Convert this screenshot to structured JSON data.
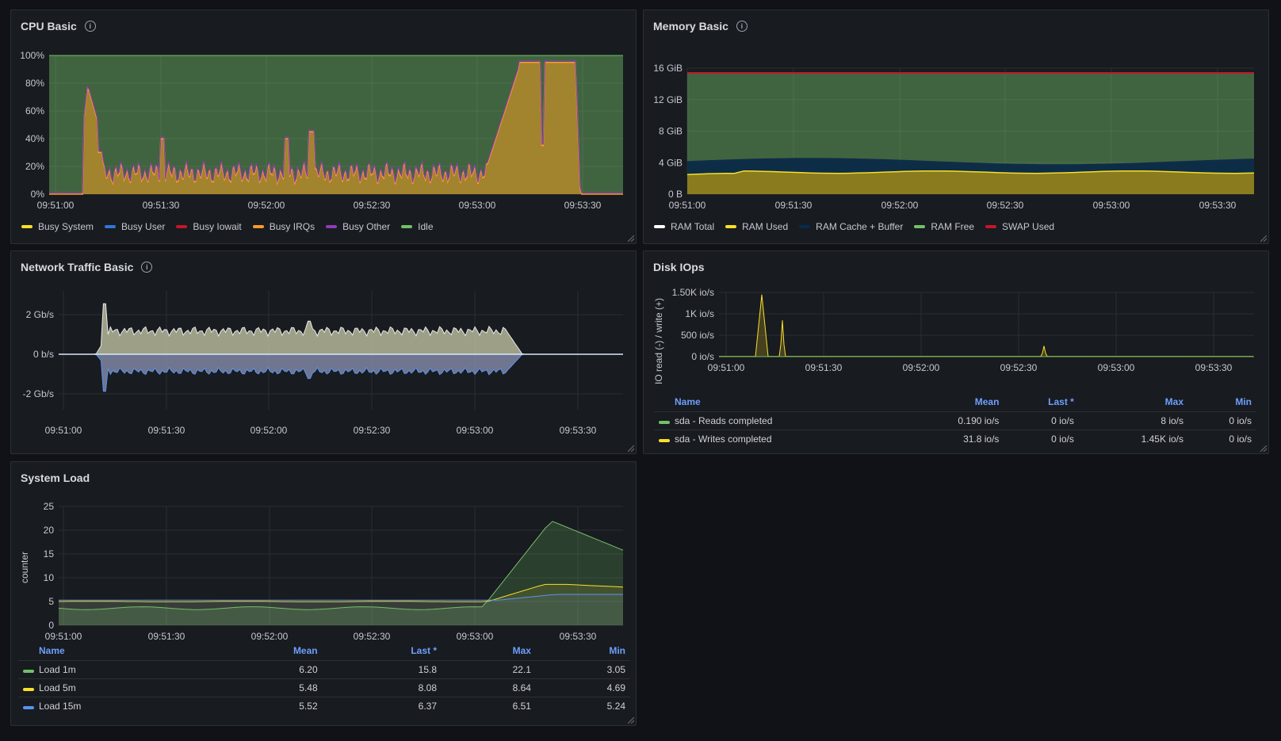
{
  "panels": {
    "cpu": {
      "title": "CPU Basic",
      "legend": [
        {
          "label": "Busy System",
          "color": "#fade2a"
        },
        {
          "label": "Busy User",
          "color": "#3274d9"
        },
        {
          "label": "Busy Iowait",
          "color": "#c4162a"
        },
        {
          "label": "Busy IRQs",
          "color": "#ff9830"
        },
        {
          "label": "Busy Other",
          "color": "#8f3bb8"
        },
        {
          "label": "Idle",
          "color": "#73bf69"
        }
      ],
      "y_ticks": [
        "100%",
        "80%",
        "60%",
        "40%",
        "20%",
        "0%"
      ],
      "x_ticks": [
        "09:51:00",
        "09:51:30",
        "09:52:00",
        "09:52:30",
        "09:53:00",
        "09:53:30"
      ]
    },
    "memory": {
      "title": "Memory Basic",
      "legend": [
        {
          "label": "RAM Total",
          "color": "#ffffff"
        },
        {
          "label": "RAM Used",
          "color": "#fade2a"
        },
        {
          "label": "RAM Cache + Buffer",
          "color": "#052b51"
        },
        {
          "label": "RAM Free",
          "color": "#73bf69"
        },
        {
          "label": "SWAP Used",
          "color": "#c4162a"
        }
      ],
      "y_ticks": [
        "16 GiB",
        "12 GiB",
        "8 GiB",
        "4 GiB",
        "0 B"
      ],
      "x_ticks": [
        "09:51:00",
        "09:51:30",
        "09:52:00",
        "09:52:30",
        "09:53:00",
        "09:53:30"
      ]
    },
    "network": {
      "title": "Network Traffic Basic",
      "y_ticks": [
        "2 Gb/s",
        "0 b/s",
        "-2 Gb/s"
      ],
      "x_ticks": [
        "09:51:00",
        "09:51:30",
        "09:52:00",
        "09:52:30",
        "09:53:00",
        "09:53:30"
      ]
    },
    "disk": {
      "title": "Disk IOps",
      "y_axis_label": "IO read (-) / write (+)",
      "y_ticks": [
        "1.50K io/s",
        "1K io/s",
        "500 io/s",
        "0 io/s"
      ],
      "x_ticks": [
        "09:51:00",
        "09:51:30",
        "09:52:00",
        "09:52:30",
        "09:53:00",
        "09:53:30"
      ],
      "table": {
        "headers": {
          "name": "Name",
          "mean": "Mean",
          "last": "Last *",
          "max": "Max",
          "min": "Min"
        },
        "rows": [
          {
            "name": "sda - Reads completed",
            "color": "#73bf69",
            "mean": "0.190 io/s",
            "last": "0 io/s",
            "max": "8 io/s",
            "min": "0 io/s"
          },
          {
            "name": "sda - Writes completed",
            "color": "#fade2a",
            "mean": "31.8 io/s",
            "last": "0 io/s",
            "max": "1.45K io/s",
            "min": "0 io/s"
          }
        ]
      }
    },
    "load": {
      "title": "System Load",
      "y_axis_label": "counter",
      "y_ticks": [
        "25",
        "20",
        "15",
        "10",
        "5",
        "0"
      ],
      "x_ticks": [
        "09:51:00",
        "09:51:30",
        "09:52:00",
        "09:52:30",
        "09:53:00",
        "09:53:30"
      ],
      "table": {
        "headers": {
          "name": "Name",
          "mean": "Mean",
          "last": "Last *",
          "max": "Max",
          "min": "Min"
        },
        "rows": [
          {
            "name": "Load 1m",
            "color": "#73bf69",
            "mean": "6.20",
            "last": "15.8",
            "max": "22.1",
            "min": "3.05"
          },
          {
            "name": "Load 5m",
            "color": "#fade2a",
            "mean": "5.48",
            "last": "8.08",
            "max": "8.64",
            "min": "4.69"
          },
          {
            "name": "Load 15m",
            "color": "#5794f2",
            "mean": "5.52",
            "last": "6.37",
            "max": "6.51",
            "min": "5.24"
          }
        ]
      }
    }
  }
}
